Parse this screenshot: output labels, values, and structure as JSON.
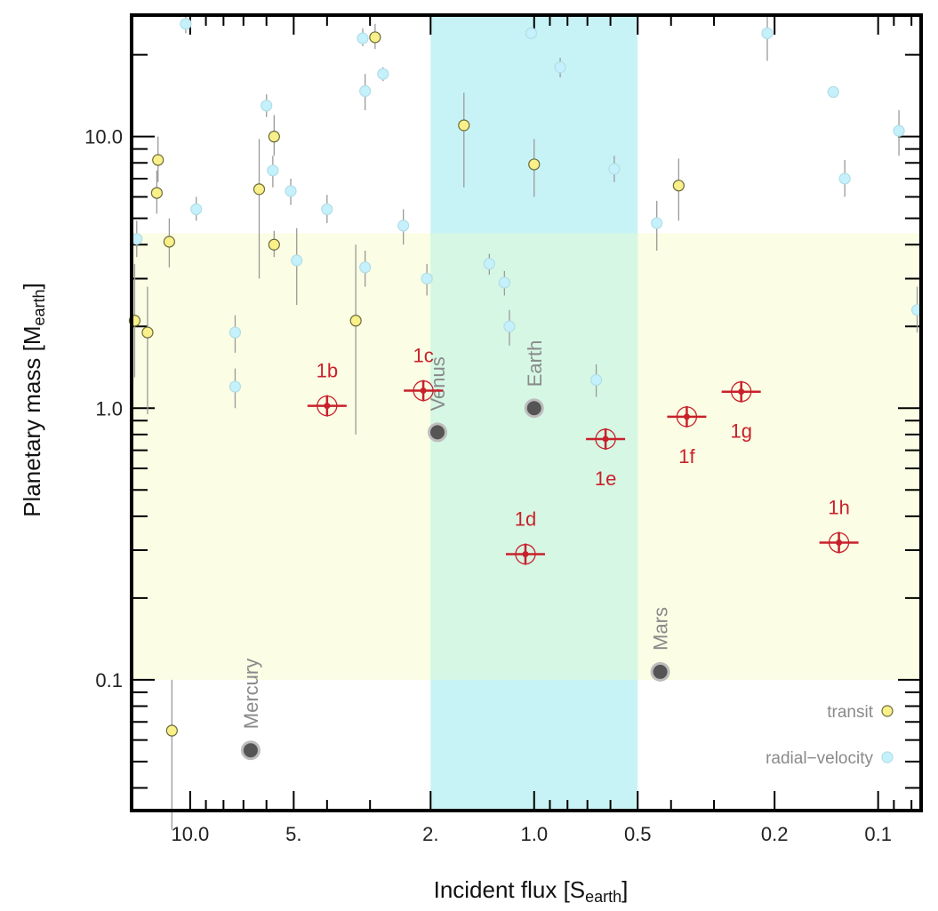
{
  "chart_data": {
    "type": "scatter",
    "xlabel_main": "Incident flux [S",
    "xlabel_sub": "earth",
    "xlabel_end": "]",
    "ylabel_main": "Planetary mass [M",
    "ylabel_sub": "earth",
    "ylabel_end": "]",
    "x_scale": "log",
    "x_reversed": true,
    "xlim": [
      14.8,
      0.075
    ],
    "y_scale": "log",
    "ylim": [
      0.033,
      28
    ],
    "x_tick_labels": [
      {
        "value": 10,
        "label": "10.0"
      },
      {
        "value": 5,
        "label": "5."
      },
      {
        "value": 2,
        "label": "2."
      },
      {
        "value": 1,
        "label": "1.0"
      },
      {
        "value": 0.5,
        "label": "0.5"
      },
      {
        "value": 0.2,
        "label": "0.2"
      },
      {
        "value": 0.1,
        "label": "0.1"
      }
    ],
    "y_tick_labels": [
      {
        "value": 0.1,
        "label": "0.1"
      },
      {
        "value": 1,
        "label": "1.0"
      },
      {
        "value": 10,
        "label": "10.0"
      }
    ],
    "habitable_zone_x": [
      2.0,
      0.5
    ],
    "terrestrial_mass_band_y": [
      0.1,
      4.4
    ],
    "colors": {
      "hz_band": "#c8f3f6",
      "mass_band": "#fbfde4",
      "overlap": "#d6f7e4",
      "transit_fill": "#f9f08a",
      "rv_fill": "#c4f1fb",
      "trappist": "#c8212b",
      "solar_system": "#555555"
    },
    "legend": {
      "placement": "bottom-right",
      "transit": "transit",
      "rv": "radial−velocity"
    },
    "trappist1": [
      {
        "name": "1b",
        "x": 4.0,
        "y": 1.02,
        "label_pos": "above"
      },
      {
        "name": "1c",
        "x": 2.1,
        "y": 1.16,
        "label_pos": "above"
      },
      {
        "name": "1d",
        "x": 1.06,
        "y": 0.29,
        "label_pos": "above"
      },
      {
        "name": "1e",
        "x": 0.62,
        "y": 0.77,
        "label_pos": "below"
      },
      {
        "name": "1f",
        "x": 0.36,
        "y": 0.93,
        "label_pos": "below"
      },
      {
        "name": "1g",
        "x": 0.25,
        "y": 1.15,
        "label_pos": "below"
      },
      {
        "name": "1h",
        "x": 0.13,
        "y": 0.32,
        "label_pos": "above"
      }
    ],
    "solar_system": [
      {
        "name": "Mercury",
        "x": 6.67,
        "y": 0.055
      },
      {
        "name": "Venus",
        "x": 1.91,
        "y": 0.815
      },
      {
        "name": "Earth",
        "x": 1.0,
        "y": 1.0
      },
      {
        "name": "Mars",
        "x": 0.43,
        "y": 0.107
      }
    ],
    "transit_points": [
      {
        "x": 14.5,
        "y": 2.1,
        "ylo": 1.3,
        "yhi": 3.4
      },
      {
        "x": 13.3,
        "y": 1.9,
        "ylo": 0.95,
        "yhi": 2.8
      },
      {
        "x": 12.4,
        "y": 8.2,
        "ylo": 6.8,
        "yhi": 10.0
      },
      {
        "x": 12.5,
        "y": 6.2,
        "ylo": 5.2,
        "yhi": 7.5
      },
      {
        "x": 11.5,
        "y": 4.1,
        "ylo": 3.3,
        "yhi": 5.0
      },
      {
        "x": 11.3,
        "y": 0.065,
        "ylo": 0.028,
        "yhi": 0.1
      },
      {
        "x": 6.3,
        "y": 6.4,
        "ylo": 3.0,
        "yhi": 9.8
      },
      {
        "x": 5.7,
        "y": 10.0,
        "ylo": 8.5,
        "yhi": 12.0
      },
      {
        "x": 5.7,
        "y": 4.0,
        "ylo": 3.6,
        "yhi": 4.5
      },
      {
        "x": 3.3,
        "y": 2.1,
        "ylo": 0.8,
        "yhi": 4.0
      },
      {
        "x": 2.9,
        "y": 23.2,
        "ylo": 21.0,
        "yhi": 26.0
      },
      {
        "x": 1.6,
        "y": 11.0,
        "ylo": 6.5,
        "yhi": 14.5
      },
      {
        "x": 1.0,
        "y": 7.9,
        "ylo": 6.0,
        "yhi": 9.8
      },
      {
        "x": 0.38,
        "y": 6.6,
        "ylo": 4.9,
        "yhi": 8.3
      }
    ],
    "rv_points": [
      {
        "x": 14.3,
        "y": 4.2,
        "ylo": 3.6,
        "yhi": 4.9
      },
      {
        "x": 10.3,
        "y": 26.0,
        "ylo": 24.0,
        "yhi": 28.0
      },
      {
        "x": 9.6,
        "y": 5.4,
        "ylo": 4.9,
        "yhi": 6.0
      },
      {
        "x": 7.4,
        "y": 1.9,
        "ylo": 1.6,
        "yhi": 2.2
      },
      {
        "x": 7.4,
        "y": 1.2,
        "ylo": 1.0,
        "yhi": 1.4
      },
      {
        "x": 6.0,
        "y": 13.0,
        "ylo": 11.8,
        "yhi": 14.3
      },
      {
        "x": 5.75,
        "y": 7.5,
        "ylo": 6.5,
        "yhi": 8.5
      },
      {
        "x": 5.1,
        "y": 6.3,
        "ylo": 5.6,
        "yhi": 7.0
      },
      {
        "x": 4.9,
        "y": 3.5,
        "ylo": 2.4,
        "yhi": 4.6
      },
      {
        "x": 4.0,
        "y": 5.4,
        "ylo": 4.8,
        "yhi": 6.1
      },
      {
        "x": 3.15,
        "y": 23.0,
        "ylo": 21.5,
        "yhi": 25.0
      },
      {
        "x": 3.1,
        "y": 14.7,
        "ylo": 12.5,
        "yhi": 17.0
      },
      {
        "x": 3.1,
        "y": 3.3,
        "ylo": 2.8,
        "yhi": 3.8
      },
      {
        "x": 2.75,
        "y": 17.0,
        "ylo": 16.0,
        "yhi": 18.0
      },
      {
        "x": 2.4,
        "y": 4.7,
        "ylo": 4.0,
        "yhi": 5.4
      },
      {
        "x": 2.05,
        "y": 3.0,
        "ylo": 2.6,
        "yhi": 3.4
      },
      {
        "x": 1.35,
        "y": 3.4,
        "ylo": 3.1,
        "yhi": 3.7
      },
      {
        "x": 1.22,
        "y": 2.9,
        "ylo": 2.6,
        "yhi": 3.2
      },
      {
        "x": 1.18,
        "y": 2.0,
        "ylo": 1.7,
        "yhi": 2.3
      },
      {
        "x": 1.02,
        "y": 24.0,
        "ylo": 23.0,
        "yhi": 25.0
      },
      {
        "x": 0.84,
        "y": 18.0,
        "ylo": 16.5,
        "yhi": 19.5
      },
      {
        "x": 0.66,
        "y": 1.27,
        "ylo": 1.1,
        "yhi": 1.45
      },
      {
        "x": 0.585,
        "y": 7.6,
        "ylo": 6.8,
        "yhi": 8.5
      },
      {
        "x": 0.44,
        "y": 4.8,
        "ylo": 3.8,
        "yhi": 5.8
      },
      {
        "x": 0.21,
        "y": 24.0,
        "ylo": 19.0,
        "yhi": 28.0
      },
      {
        "x": 0.135,
        "y": 14.6,
        "ylo": 14.0,
        "yhi": 15.2
      },
      {
        "x": 0.125,
        "y": 7.0,
        "ylo": 6.0,
        "yhi": 8.2
      },
      {
        "x": 0.087,
        "y": 10.5,
        "ylo": 8.5,
        "yhi": 12.5
      },
      {
        "x": 0.077,
        "y": 2.3,
        "ylo": 1.9,
        "yhi": 2.8
      }
    ]
  }
}
